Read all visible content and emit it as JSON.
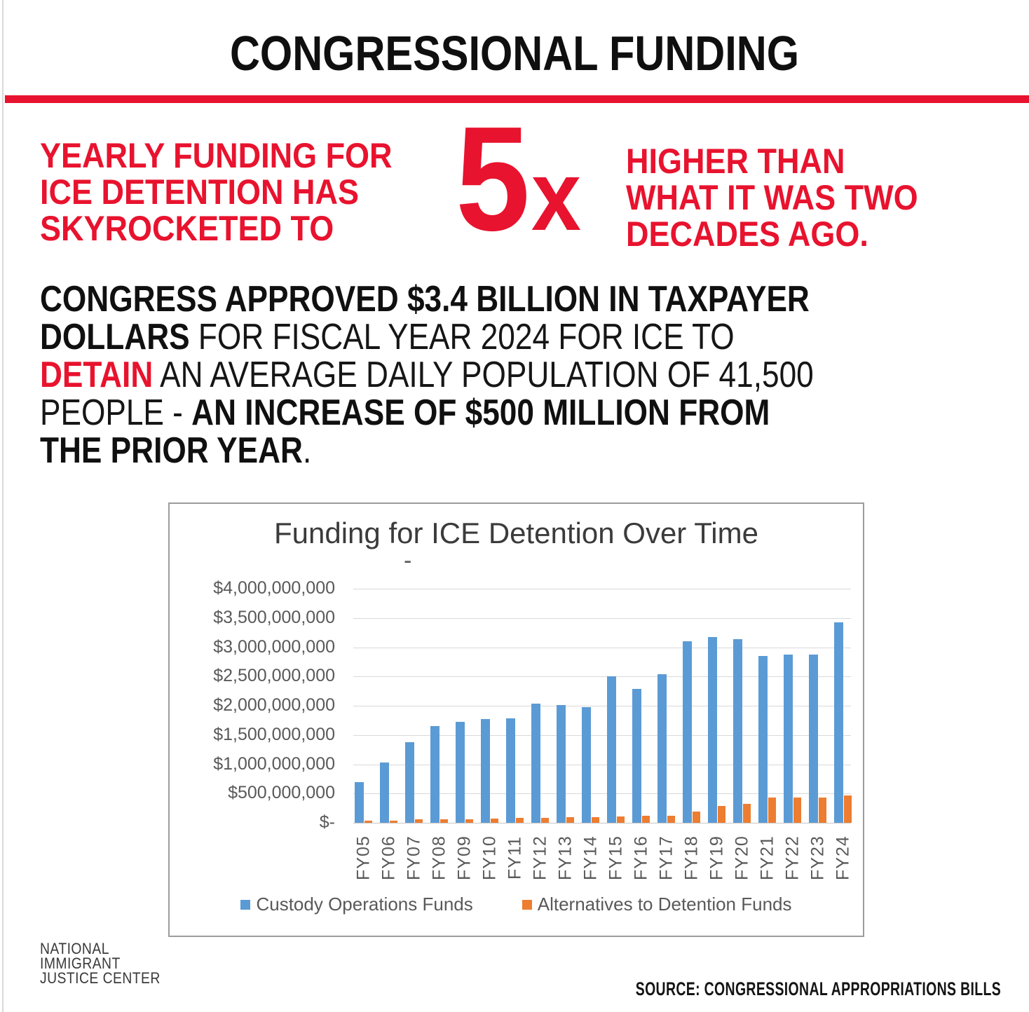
{
  "header": {
    "title": "CONGRESSIONAL FUNDING"
  },
  "stat": {
    "left_lines": [
      "YEARLY FUNDING FOR",
      "ICE DETENTION HAS",
      "SKYROCKETED TO"
    ],
    "multiplier_number": "5",
    "multiplier_suffix": "x",
    "right_lines": [
      "HIGHER THAN",
      "WHAT IT WAS TWO",
      "DECADES AGO."
    ]
  },
  "paragraph": {
    "lines": [
      [
        {
          "t": "CONGRESS APPROVED $3.4 BILLION IN TAXPAYER",
          "s": "b"
        }
      ],
      [
        {
          "t": "DOLLARS",
          "s": "b"
        },
        {
          "t": " FOR FISCAL YEAR 2024 FOR ICE TO",
          "s": "n"
        }
      ],
      [
        {
          "t": "DETAIN",
          "s": "r"
        },
        {
          "t": " AN AVERAGE DAILY POPULATION OF 41,500",
          "s": "n"
        }
      ],
      [
        {
          "t": "PEOPLE - ",
          "s": "n"
        },
        {
          "t": "AN INCREASE OF $500 MILLION FROM",
          "s": "b"
        }
      ],
      [
        {
          "t": "THE PRIOR YEAR",
          "s": "b"
        },
        {
          "t": ".",
          "s": "n"
        }
      ]
    ]
  },
  "chart_data": {
    "type": "bar",
    "title": "Funding for ICE Detention Over Time",
    "stray_mark": "-",
    "categories": [
      "FY05",
      "FY06",
      "FY07",
      "FY08",
      "FY09",
      "FY10",
      "FY11",
      "FY12",
      "FY13",
      "FY14",
      "FY15",
      "FY16",
      "FY17",
      "FY18",
      "FY19",
      "FY20",
      "FY21",
      "FY22",
      "FY23",
      "FY24"
    ],
    "series": [
      {
        "name": "Custody Operations Funds",
        "color": "#5b9bd5",
        "values": [
          700000000,
          1030000000,
          1380000000,
          1650000000,
          1720000000,
          1770000000,
          1790000000,
          2040000000,
          2010000000,
          1980000000,
          2500000000,
          2290000000,
          2540000000,
          3100000000,
          3170000000,
          3140000000,
          2850000000,
          2870000000,
          2870000000,
          3430000000
        ]
      },
      {
        "name": "Alternatives to Detention Funds",
        "color": "#ed7d31",
        "values": [
          40000000,
          40000000,
          60000000,
          65000000,
          65000000,
          70000000,
          80000000,
          80000000,
          100000000,
          100000000,
          110000000,
          120000000,
          125000000,
          190000000,
          290000000,
          320000000,
          435000000,
          435000000,
          435000000,
          465000000
        ]
      }
    ],
    "ylim": [
      0,
      4000000000
    ],
    "ytick_interval": 500000000,
    "ytick_labels": [
      "$4,000,000,000",
      "$3,500,000,000",
      "$3,000,000,000",
      "$2,500,000,000",
      "$2,000,000,000",
      "$1,500,000,000",
      "$1,000,000,000",
      "$500,000,000",
      "$-"
    ],
    "grid": true,
    "legend_position": "bottom"
  },
  "footer": {
    "logo_lines": [
      "NATIONAL",
      "IMMIGRANT",
      "JUSTICE CENTER"
    ],
    "source": "SOURCE: CONGRESSIONAL APPROPRIATIONS BILLS"
  },
  "colors": {
    "accent_red": "#e8132e",
    "bar_blue": "#5b9bd5",
    "bar_orange": "#ed7d31",
    "axis_gray": "#595959",
    "gridline_gray": "#d9d9d9",
    "text_black": "#101010"
  }
}
